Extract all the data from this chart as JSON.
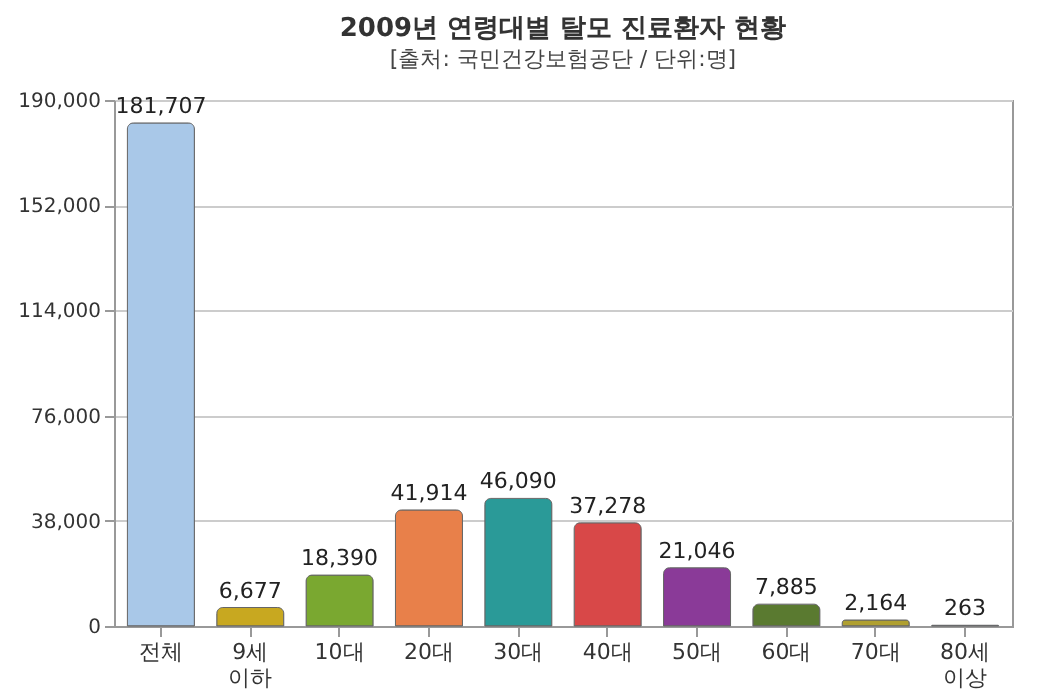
{
  "chart_data": {
    "type": "bar",
    "title": "2009년 연령대별 탈모 진료환자 현황",
    "subtitle": "[출처: 국민건강보험공단 / 단위:명]",
    "categories": [
      "전체",
      "9세 이하",
      "10대",
      "20대",
      "30대",
      "40대",
      "50대",
      "60대",
      "70대",
      "80세 이상"
    ],
    "values": [
      181707,
      6677,
      18390,
      41914,
      46090,
      37278,
      21046,
      7885,
      2164,
      263
    ],
    "colors": [
      "#a9c8e8",
      "#c8a820",
      "#7aa830",
      "#e8804a",
      "#2a9a98",
      "#d84848",
      "#8a3a98",
      "#5a7a30",
      "#b0a030",
      "#2060b0"
    ],
    "value_labels": [
      "181,707",
      "6,677",
      "18,390",
      "41,914",
      "46,090",
      "37,278",
      "21,046",
      "7,885",
      "2,164",
      "263"
    ],
    "ylim": [
      0,
      190000
    ],
    "yticks": [
      0,
      {
        "value": 38000,
        "label": "38,000"
      },
      {
        "value": 76000,
        "label": "76,000"
      },
      {
        "value": 114000,
        "label": "114,000"
      },
      {
        "value": 152000,
        "label": "152,000"
      },
      {
        "value": 190000,
        "label": "190,000"
      }
    ],
    "grid": "y"
  }
}
